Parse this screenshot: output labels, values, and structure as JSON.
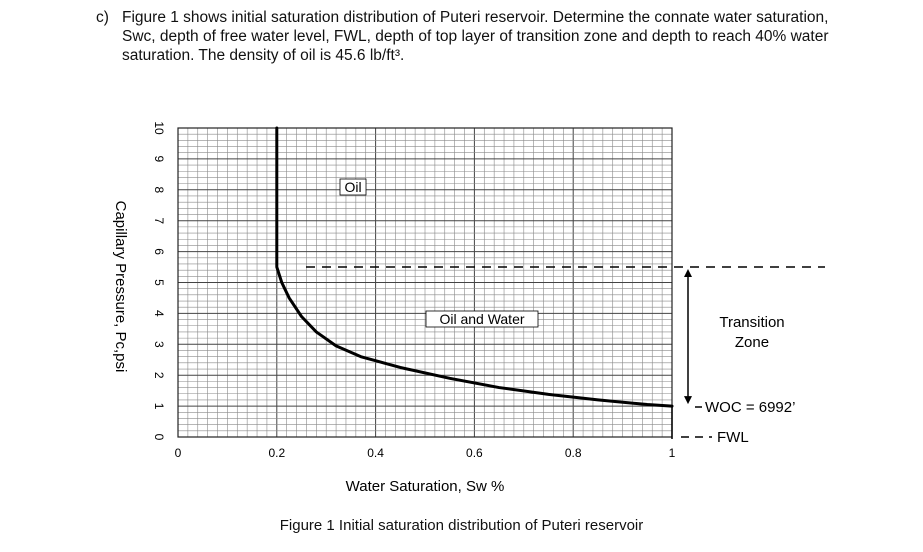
{
  "question": {
    "label": "c)",
    "text": "Figure 1 shows initial saturation distribution of Puteri reservoir. Determine the connate water saturation, Swc, depth of free water level, FWL, depth of top layer of transition zone and depth to reach 40% water saturation. The density of oil is 45.6 lb/ft³."
  },
  "caption": "Figure 1 Initial saturation distribution of Puteri reservoir",
  "chart_data": {
    "type": "line",
    "title": "",
    "xlabel": "Water Saturation, Sw %",
    "ylabel": "Capillary Pressure, Pc,psi",
    "xlim": [
      0,
      1
    ],
    "ylim": [
      0,
      10
    ],
    "x_ticks": [
      "0",
      "0.2",
      "0.4",
      "0.6",
      "0.8",
      "1"
    ],
    "y_ticks": [
      "0",
      "1",
      "2",
      "3",
      "4",
      "5",
      "6",
      "7",
      "8",
      "9",
      "10"
    ],
    "grid": true,
    "series": [
      {
        "name": "",
        "x": [
          0.2,
          0.2,
          0.21,
          0.225,
          0.25,
          0.28,
          0.32,
          0.37,
          0.45,
          0.55,
          0.65,
          0.75,
          0.85,
          0.95,
          1.0
        ],
        "y": [
          10,
          5.5,
          5.0,
          4.5,
          3.9,
          3.4,
          2.95,
          2.6,
          2.25,
          1.9,
          1.6,
          1.38,
          1.2,
          1.05,
          1.0
        ]
      }
    ],
    "annotations": {
      "oil_zone": "Oil",
      "oil_water_zone": "Oil and Water",
      "transition_zone": "Transition\nZone",
      "woc": "WOC = 6992’",
      "fwl": "FWL",
      "transition_top_pc": 5.5,
      "woc_pc": 1.0,
      "fwl_pc": 0
    }
  }
}
